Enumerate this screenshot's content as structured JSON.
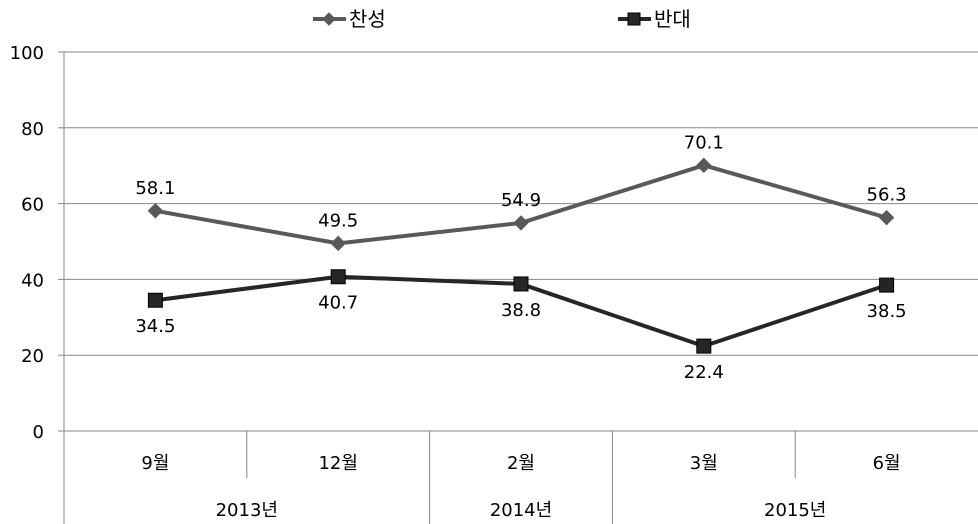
{
  "chart_data": {
    "type": "line",
    "categories": [
      "9월",
      "12월",
      "2월",
      "3월",
      "6월"
    ],
    "groups": [
      {
        "label": "2013년",
        "span": 2
      },
      {
        "label": "2014년",
        "span": 1
      },
      {
        "label": "2015년",
        "span": 2
      }
    ],
    "series": [
      {
        "name": "찬성",
        "values": [
          58.1,
          49.5,
          54.9,
          70.1,
          56.3
        ],
        "color": "#595959",
        "marker": "diamond"
      },
      {
        "name": "반대",
        "values": [
          34.5,
          40.7,
          38.8,
          22.4,
          38.5
        ],
        "color": "#262626",
        "marker": "square"
      }
    ],
    "ylim": [
      0,
      100
    ],
    "yticks": [
      0,
      20,
      40,
      60,
      80,
      100
    ],
    "grid": true,
    "legend": "top"
  }
}
